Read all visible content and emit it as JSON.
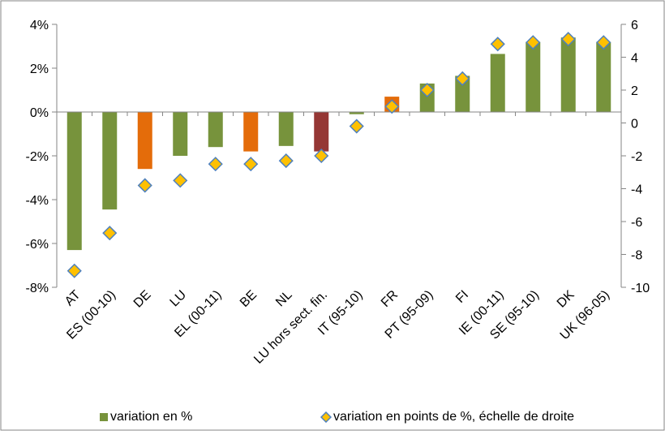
{
  "chart_data": {
    "type": "bar",
    "categories": [
      "AT",
      "ES (00-10)",
      "DE",
      "LU",
      "EL (00-11)",
      "BE",
      "NL",
      "LU hors sect. fin.",
      "IT (95-10)",
      "FR",
      "PT (95-09)",
      "FI",
      "IE (00-11)",
      "SE (95-10)",
      "DK",
      "UK (96-05)"
    ],
    "series": [
      {
        "name": "variation en %",
        "kind": "bar",
        "axis": "left",
        "values": [
          -6.3,
          -4.45,
          -2.6,
          -2.0,
          -1.6,
          -1.8,
          -1.55,
          -1.8,
          -0.1,
          0.7,
          1.3,
          1.65,
          2.65,
          3.2,
          3.4,
          3.2
        ]
      },
      {
        "name": "variation en points de %, échelle de droite",
        "kind": "marker",
        "axis": "right",
        "values": [
          -9.0,
          -6.7,
          -3.8,
          -3.5,
          -2.5,
          -2.5,
          -2.3,
          -2.0,
          -0.2,
          1.0,
          2.0,
          2.7,
          4.8,
          4.9,
          5.1,
          4.9
        ]
      }
    ],
    "bar_colors": [
      "#77933c",
      "#77933c",
      "#e46c0a",
      "#77933c",
      "#77933c",
      "#e46c0a",
      "#77933c",
      "#953735",
      "#77933c",
      "#e46c0a",
      "#77933c",
      "#77933c",
      "#77933c",
      "#77933c",
      "#77933c",
      "#77933c"
    ],
    "colors": {
      "bar_default": "#77933c",
      "marker_fill": "#ffc000",
      "marker_stroke": "#4f81bd",
      "axis": "#868686"
    },
    "y_left": {
      "min": -8,
      "max": 4,
      "step": 2,
      "tick_labels": [
        "-8%",
        "-6%",
        "-4%",
        "-2%",
        "0%",
        "2%",
        "4%"
      ]
    },
    "y_right": {
      "min": -10,
      "max": 6,
      "step": 2,
      "tick_labels": [
        "-10",
        "-8",
        "-6",
        "-4",
        "-2",
        "0",
        "2",
        "4",
        "6"
      ]
    },
    "grid": false,
    "legend_position": "bottom",
    "title": "",
    "xlabel": "",
    "ylabel": ""
  }
}
